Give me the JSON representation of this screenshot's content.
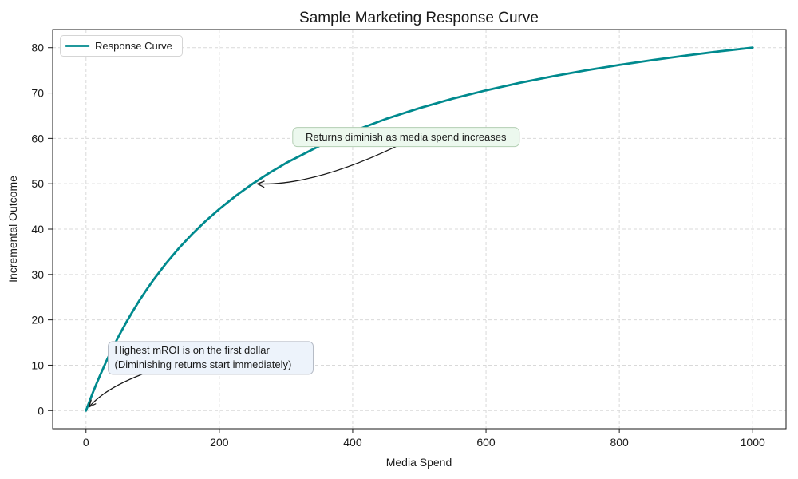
{
  "title": "Sample Marketing Response Curve",
  "colors": {
    "background": "#ffffff",
    "curve": "#008a8e",
    "grid": "#d9d9d9",
    "spine": "#1a1a1a",
    "text": "#1a1a1a",
    "arrow": "#1a1a1a",
    "legend_border": "#d5d5d5",
    "legend_fill": "#ffffff"
  },
  "legend": {
    "label": "Response Curve",
    "position": "upper left"
  },
  "chart_data": {
    "type": "line",
    "title": "Sample Marketing Response Curve",
    "xlabel": "Media Spend",
    "ylabel": "Incremental Outcome",
    "xlim": [
      0,
      1000
    ],
    "ylim": [
      0,
      80
    ],
    "x_ticks": [
      0,
      200,
      400,
      600,
      800,
      1000
    ],
    "y_ticks": [
      0,
      10,
      20,
      30,
      40,
      50,
      60,
      70,
      80
    ],
    "grid": "dashed",
    "legend_position": "upper left",
    "series": [
      {
        "name": "Response Curve",
        "color": "#008a8e",
        "x": [
          0,
          5,
          10,
          15,
          20,
          30,
          40,
          50,
          60,
          70,
          80,
          90,
          100,
          120,
          140,
          160,
          180,
          200,
          225,
          250,
          275,
          300,
          350,
          400,
          450,
          500,
          550,
          600,
          650,
          700,
          750,
          800,
          850,
          900,
          950,
          1000
        ],
        "y": [
          0,
          1.96,
          3.85,
          5.66,
          7.41,
          10.71,
          13.79,
          16.67,
          19.35,
          21.88,
          24.24,
          26.47,
          28.57,
          32.43,
          35.9,
          39.02,
          41.86,
          44.44,
          47.37,
          50,
          52.38,
          54.55,
          58.33,
          61.54,
          64.29,
          66.67,
          68.75,
          70.59,
          72.22,
          73.68,
          75,
          76.19,
          77.27,
          78.26,
          79.17,
          80
        ]
      }
    ],
    "annotations": [
      {
        "text": "Returns diminish as media spend increases",
        "target_xy": [
          250,
          50
        ],
        "text_center_xy": [
          480,
          60.3
        ],
        "fill": "#ecf8ee",
        "border": "#b3ceb3"
      },
      {
        "lines": [
          "Highest mROI is on the first dollar",
          "(Diminishing returns start immediately)"
        ],
        "target_xy": [
          0,
          0
        ],
        "text_center_xy": [
          187,
          11.6
        ],
        "fill": "#edf3fb",
        "border": "#b6bcc6"
      }
    ]
  }
}
